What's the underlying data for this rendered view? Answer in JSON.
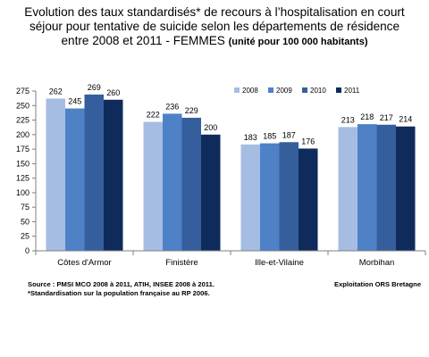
{
  "title_lines": [
    "Evolution des taux standardisés* de recours à l’hospitalisation en court",
    "séjour pour tentative de suicide selon les départements de résidence",
    "entre 2008 et 2011 - FEMMES"
  ],
  "title_unit": "(unité pour 100 000 habitants)",
  "footer": {
    "source": "Source : PMSI MCO 2008 à 2011, ATIH, INSEE 2008 à 2011.",
    "note": "*Standardisation sur la population française au RP 2006.",
    "credit": "Exploitation ORS Bretagne"
  },
  "chart_data": {
    "type": "bar",
    "categories": [
      "Côtes d'Armor",
      "Finistère",
      "Ille-et-Vilaine",
      "Morbihan"
    ],
    "series": [
      {
        "name": "2008",
        "color": "#a6bde3",
        "values": [
          262,
          222,
          183,
          213
        ]
      },
      {
        "name": "2009",
        "color": "#4f81c7",
        "values": [
          245,
          236,
          185,
          218
        ]
      },
      {
        "name": "2010",
        "color": "#355e9c",
        "values": [
          269,
          229,
          187,
          217
        ]
      },
      {
        "name": "2011",
        "color": "#0f2b5c",
        "values": [
          260,
          200,
          176,
          214
        ]
      }
    ],
    "ylim": [
      0,
      275
    ],
    "yticks": [
      0,
      25,
      50,
      75,
      100,
      125,
      150,
      175,
      200,
      225,
      250,
      275
    ],
    "grid": false,
    "legend_position": "top-right",
    "data_labels": true
  }
}
